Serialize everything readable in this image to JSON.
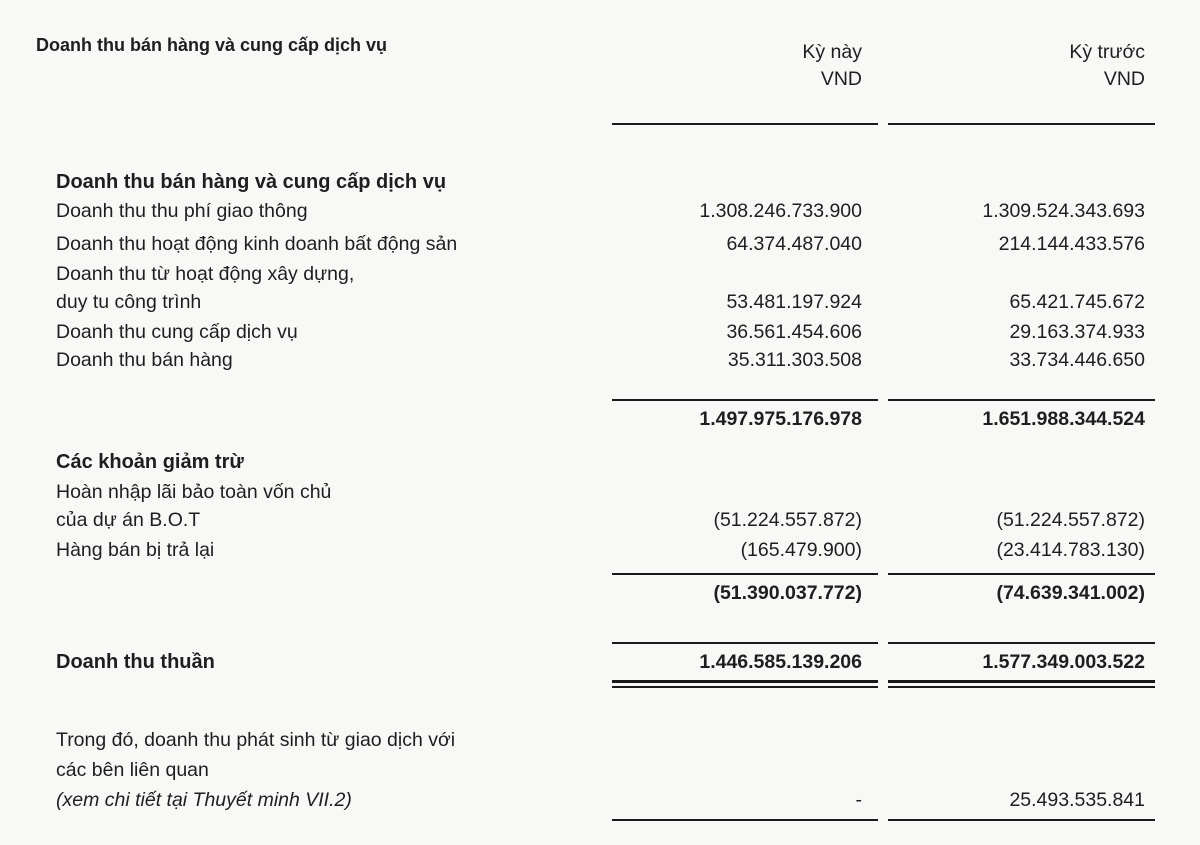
{
  "title": "Doanh thu bán hàng và cung cấp dịch vụ",
  "columns": [
    {
      "period": "Kỳ này",
      "unit": "VND"
    },
    {
      "period": "Kỳ trước",
      "unit": "VND"
    }
  ],
  "sections": {
    "revenue": {
      "heading": "Doanh thu bán hàng và cung cấp dịch vụ",
      "rows": [
        {
          "label": "Doanh thu thu phí giao thông",
          "current": "1.308.246.733.900",
          "previous": "1.309.524.343.693"
        },
        {
          "label": "Doanh thu hoạt động kinh doanh bất động sản",
          "current": "64.374.487.040",
          "previous": "214.144.433.576"
        },
        {
          "label": "Doanh thu từ hoạt động xây dựng,",
          "label2": "duy tu công trình",
          "current": "53.481.197.924",
          "previous": "65.421.745.672"
        },
        {
          "label": "Doanh thu cung cấp dịch vụ",
          "current": "36.561.454.606",
          "previous": "29.163.374.933"
        },
        {
          "label": "Doanh thu bán hàng",
          "current": "35.311.303.508",
          "previous": "33.734.446.650"
        }
      ],
      "total": {
        "current": "1.497.975.176.978",
        "previous": "1.651.988.344.524"
      }
    },
    "deductions": {
      "heading": "Các khoản giảm trừ",
      "rows": [
        {
          "label": "Hoàn nhập lãi bảo toàn vốn chủ",
          "label2": "của dự án B.O.T",
          "current": "(51.224.557.872)",
          "previous": "(51.224.557.872)"
        },
        {
          "label": "Hàng bán bị trả lại",
          "current": "(165.479.900)",
          "previous": "(23.414.783.130)"
        }
      ],
      "total": {
        "current": "(51.390.037.772)",
        "previous": "(74.639.341.002)"
      }
    },
    "net": {
      "label": "Doanh thu thuần",
      "current": "1.446.585.139.206",
      "previous": "1.577.349.003.522"
    },
    "related": {
      "line1": "Trong đó, doanh thu phát sinh từ giao dịch với",
      "line2": "các bên liên quan",
      "note": "(xem chi tiết tại Thuyết minh VII.2)",
      "current": "-",
      "previous": "25.493.535.841"
    }
  }
}
